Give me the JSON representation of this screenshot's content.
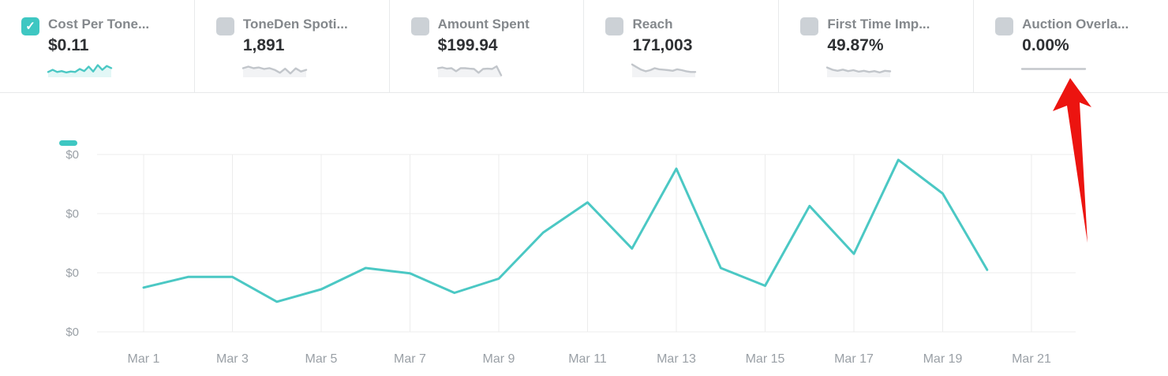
{
  "colors": {
    "accent_teal": "#3ec7c2",
    "chart_line": "#4bc8c4",
    "teal_spark_fill": "#e2f7f6",
    "gray_spark": "#c2c6cb",
    "gray_spark_fill": "#f2f3f5",
    "flat_spark": "#c3c7cb",
    "arrow_red": "#ec1410",
    "grid": "#ececec",
    "axis_text": "#9aa0a6",
    "label_text": "#84888c",
    "value_text": "#2e3033",
    "checkbox_unchecked": "#ccd1d6"
  },
  "icons": {
    "checkmark": "✓"
  },
  "cards": [
    {
      "label": "Cost Per Tone...",
      "value": "$0.11",
      "checked": true,
      "spark_color": "#4bc8c4",
      "spark_fill": "#e2f7f6",
      "spark": [
        0.3,
        0.44,
        0.3,
        0.36,
        0.27,
        0.33,
        0.3,
        0.5,
        0.36,
        0.66,
        0.33,
        0.76,
        0.44,
        0.7,
        0.56
      ]
    },
    {
      "label": "ToneDen Spoti...",
      "value": "1,891",
      "checked": false,
      "spark_color": "#c2c6cb",
      "spark_fill": "#f2f3f5",
      "spark": [
        0.55,
        0.66,
        0.55,
        0.6,
        0.5,
        0.56,
        0.44,
        0.25,
        0.52,
        0.2,
        0.54,
        0.33,
        0.44
      ]
    },
    {
      "label": "Amount Spent",
      "value": "$199.94",
      "checked": false,
      "spark_color": "#c2c6cb",
      "spark_fill": "#f2f3f5",
      "spark": [
        0.55,
        0.6,
        0.52,
        0.55,
        0.35,
        0.55,
        0.55,
        0.52,
        0.5,
        0.25,
        0.5,
        0.52,
        0.5,
        0.68,
        0.08
      ]
    },
    {
      "label": "Reach",
      "value": "171,003",
      "checked": false,
      "spark_color": "#c2c6cb",
      "spark_fill": "#f2f3f5",
      "spark": [
        0.8,
        0.62,
        0.45,
        0.35,
        0.42,
        0.55,
        0.48,
        0.45,
        0.42,
        0.38,
        0.48,
        0.42,
        0.35,
        0.3,
        0.3
      ]
    },
    {
      "label": "First Time Imp...",
      "value": "49.87%",
      "checked": false,
      "spark_color": "#c2c6cb",
      "spark_fill": "#f2f3f5",
      "spark": [
        0.6,
        0.45,
        0.38,
        0.46,
        0.36,
        0.42,
        0.32,
        0.38,
        0.3,
        0.36,
        0.27,
        0.38,
        0.34
      ]
    },
    {
      "label": "Auction Overla...",
      "value": "0.00%",
      "checked": false,
      "spark_color": "#c3c7cb",
      "spark_fill": null,
      "spark": [
        0.5,
        0.5
      ]
    }
  ],
  "chart_data": {
    "type": "line",
    "series_name": "Cost Per Tone...",
    "x": [
      "Mar 1",
      "Mar 2",
      "Mar 3",
      "Mar 4",
      "Mar 5",
      "Mar 6",
      "Mar 7",
      "Mar 8",
      "Mar 9",
      "Mar 10",
      "Mar 11",
      "Mar 12",
      "Mar 13",
      "Mar 14",
      "Mar 15",
      "Mar 16",
      "Mar 17",
      "Mar 18",
      "Mar 19",
      "Mar 20"
    ],
    "values_norm": [
      0.25,
      0.31,
      0.31,
      0.17,
      0.24,
      0.36,
      0.33,
      0.22,
      0.3,
      0.56,
      0.73,
      0.47,
      0.92,
      0.36,
      0.26,
      0.71,
      0.44,
      0.97,
      0.78,
      0.35
    ],
    "y_tick_labels": [
      "$0",
      "$0",
      "$0",
      "$0"
    ],
    "x_tick_labels": [
      "Mar 1",
      "Mar 3",
      "Mar 5",
      "Mar 7",
      "Mar 9",
      "Mar 11",
      "Mar 13",
      "Mar 15",
      "Mar 17",
      "Mar 19",
      "Mar 21"
    ],
    "line_color": "#4bc8c4",
    "grid": "on",
    "legend_position": "top-left",
    "note": "All y-axis tick labels display $0; values_norm are data heights as fraction of plot height (peaks Mar 13 and Mar 18)"
  },
  "annotation": {
    "arrow_color": "#ec1410",
    "points_at": "Auction Overla... sparkline"
  }
}
